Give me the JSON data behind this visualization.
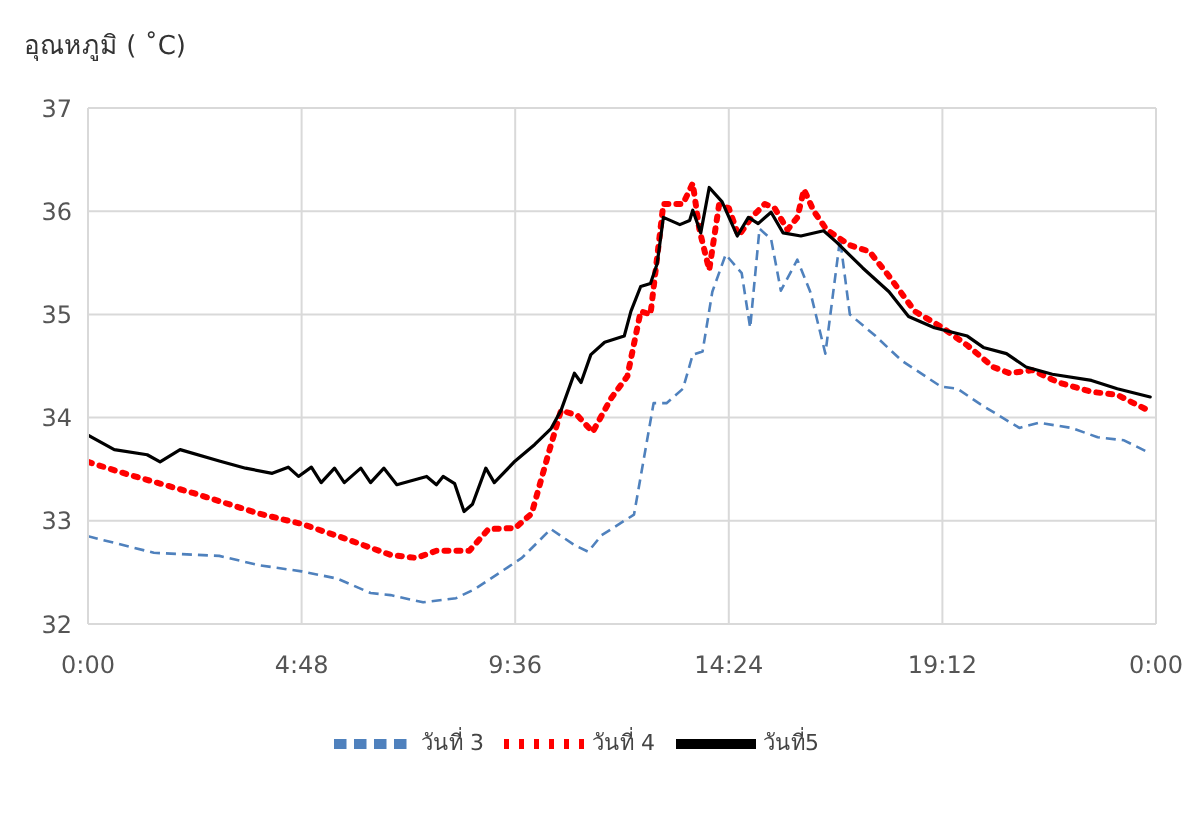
{
  "chart_data": {
    "type": "line",
    "ylabel": "อุณหภูมิ ( ˚C)",
    "xlim": [
      0,
      24
    ],
    "xticks": [
      {
        "value": 0,
        "label": "0:00"
      },
      {
        "value": 4.8,
        "label": "4:48"
      },
      {
        "value": 9.6,
        "label": "9:36"
      },
      {
        "value": 14.4,
        "label": "14:24"
      },
      {
        "value": 19.2,
        "label": "19:12"
      },
      {
        "value": 24,
        "label": "0:00"
      }
    ],
    "ylim": [
      32,
      37
    ],
    "yticks": [
      32,
      33,
      34,
      35,
      36,
      37
    ],
    "grid": true,
    "legend": "bottom",
    "series": [
      {
        "name": "วันที่ 3",
        "color": "#4f81bd",
        "line_style": "dashed",
        "x": [
          0,
          1.48,
          2.95,
          3.84,
          4.8,
          5.6,
          6.35,
          6.8,
          7.53,
          8.27,
          8.7,
          9.75,
          10.4,
          10.95,
          11.24,
          11.54,
          12.27,
          12.71,
          13.0,
          13.37,
          13.59,
          13.81,
          14.03,
          14.33,
          14.69,
          14.88,
          15.09,
          15.35,
          15.57,
          15.94,
          16.23,
          16.57,
          16.9,
          17.12,
          17.7,
          18.29,
          19.17,
          19.54,
          20.05,
          20.93,
          21.37,
          22.1,
          22.69,
          23.28,
          23.84
        ],
        "values": [
          32.85,
          32.69,
          32.66,
          32.57,
          32.51,
          32.44,
          32.3,
          32.28,
          32.21,
          32.25,
          32.34,
          32.64,
          32.92,
          32.76,
          32.7,
          32.86,
          33.06,
          34.14,
          34.14,
          34.28,
          34.61,
          34.64,
          35.22,
          35.58,
          35.4,
          34.87,
          35.83,
          35.73,
          35.23,
          35.53,
          35.22,
          34.62,
          35.73,
          35.0,
          34.79,
          34.55,
          34.3,
          34.28,
          34.13,
          33.9,
          33.95,
          33.9,
          33.81,
          33.78,
          33.66
        ]
      },
      {
        "name": "วันที่ 4",
        "color": "#ff0000",
        "line_style": "dotted",
        "x": [
          0,
          0.89,
          2.36,
          3.84,
          4.8,
          5.76,
          6.8,
          7.38,
          7.83,
          8.57,
          9.0,
          9.6,
          9.97,
          10.34,
          10.63,
          11.0,
          11.34,
          11.76,
          12.12,
          12.42,
          12.64,
          12.93,
          13.37,
          13.59,
          13.74,
          13.96,
          14.18,
          14.4,
          14.62,
          14.91,
          15.21,
          15.43,
          15.72,
          15.94,
          16.09,
          16.31,
          16.6,
          17.12,
          17.56,
          18.0,
          18.58,
          19.17,
          19.76,
          20.34,
          20.71,
          21.22,
          21.81,
          22.55,
          23.13,
          23.87
        ],
        "values": [
          33.57,
          33.45,
          33.27,
          33.07,
          32.97,
          32.83,
          32.67,
          32.64,
          32.71,
          32.71,
          32.92,
          32.93,
          33.07,
          33.64,
          34.07,
          34.02,
          33.86,
          34.19,
          34.4,
          35.03,
          35.0,
          36.07,
          36.07,
          36.27,
          35.82,
          35.43,
          36.06,
          36.03,
          35.76,
          35.94,
          36.07,
          36.03,
          35.82,
          35.94,
          36.21,
          36.0,
          35.82,
          35.67,
          35.61,
          35.37,
          35.03,
          34.88,
          34.7,
          34.49,
          34.43,
          34.46,
          34.34,
          34.25,
          34.22,
          34.06
        ]
      },
      {
        "name": "วันที่5",
        "color": "#000000",
        "line_style": "solid",
        "x": [
          0,
          0.59,
          1.33,
          1.62,
          2.07,
          2.95,
          3.54,
          4.14,
          4.5,
          4.73,
          5.02,
          5.24,
          5.54,
          5.76,
          6.13,
          6.35,
          6.65,
          6.94,
          7.61,
          7.83,
          7.98,
          8.24,
          8.45,
          8.64,
          8.94,
          9.13,
          9.6,
          10.04,
          10.4,
          10.63,
          10.93,
          11.08,
          11.3,
          11.61,
          12.05,
          12.2,
          12.42,
          12.64,
          12.79,
          12.93,
          13.3,
          13.52,
          13.59,
          13.77,
          13.96,
          14.25,
          14.59,
          14.84,
          15.06,
          15.35,
          15.62,
          16.02,
          16.53,
          16.82,
          17.41,
          18.0,
          18.44,
          19.02,
          19.76,
          20.12,
          20.64,
          21.08,
          21.67,
          22.55,
          23.13,
          23.87
        ],
        "values": [
          33.83,
          33.69,
          33.64,
          33.57,
          33.69,
          33.58,
          33.51,
          33.46,
          33.52,
          33.43,
          33.52,
          33.37,
          33.51,
          33.37,
          33.51,
          33.37,
          33.51,
          33.35,
          33.43,
          33.35,
          33.43,
          33.36,
          33.09,
          33.16,
          33.51,
          33.37,
          33.58,
          33.74,
          33.89,
          34.07,
          34.43,
          34.34,
          34.61,
          34.73,
          34.79,
          35.03,
          35.27,
          35.3,
          35.49,
          35.94,
          35.87,
          35.91,
          36.01,
          35.79,
          36.23,
          36.09,
          35.76,
          35.94,
          35.88,
          35.99,
          35.79,
          35.76,
          35.81,
          35.7,
          35.45,
          35.22,
          34.98,
          34.87,
          34.79,
          34.68,
          34.62,
          34.49,
          34.42,
          34.36,
          34.28,
          34.2
        ]
      }
    ]
  }
}
